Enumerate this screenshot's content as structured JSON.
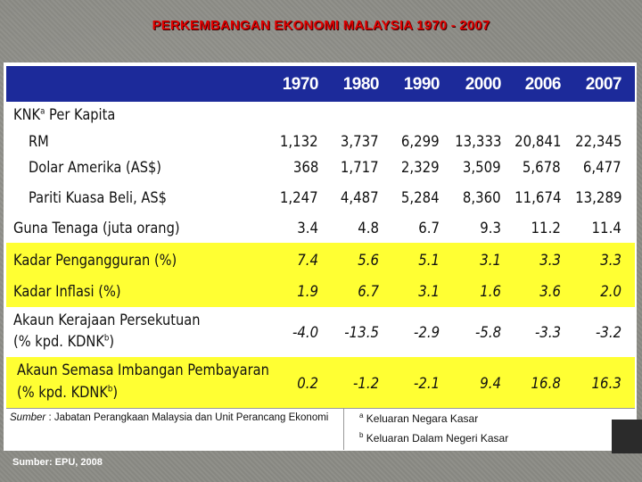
{
  "title": "PERKEMBANGAN EKONOMI MALAYSIA 1970 - 2007",
  "years": [
    "1970",
    "1980",
    "1990",
    "2000",
    "2006",
    "2007"
  ],
  "rows": [
    {
      "label": "KNK",
      "label_sup": "a",
      "label_rest": " Per Kapita",
      "values": []
    },
    {
      "label": "RM",
      "values": [
        "1,132",
        "3,737",
        "6,299",
        "13,333",
        "20,841",
        "22,345"
      ]
    },
    {
      "label": "Dolar Amerika (AS$)",
      "values": [
        "368",
        "1,717",
        "2,329",
        "3,509",
        "5,678",
        "6,477"
      ]
    },
    {
      "label": "Pariti Kuasa Beli, AS$",
      "values": [
        "1,247",
        "4,487",
        "5,284",
        "8,360",
        "11,674",
        "13,289"
      ]
    },
    {
      "label": "Guna Tenaga (juta orang)",
      "values": [
        "3.4",
        "4.8",
        "6.7",
        "9.3",
        "11.2",
        "11.4"
      ]
    },
    {
      "label": "Kadar Pengangguran (%)",
      "values": [
        "7.4",
        "5.6",
        "5.1",
        "3.1",
        "3.3",
        "3.3"
      ]
    },
    {
      "label": "Kadar Inflasi (%)",
      "values": [
        "1.9",
        "6.7",
        "3.1",
        "1.6",
        "3.6",
        "2.0"
      ]
    },
    {
      "label": "Akaun Kerajaan Persekutuan",
      "label2": "(% kpd. KDNK",
      "label2_sup": "b",
      "label2_end": ")",
      "values": [
        "-4.0",
        "-13.5",
        "-2.9",
        "-5.8",
        "-3.3",
        "-3.2"
      ]
    },
    {
      "label": "Akaun Semasa Imbangan Pembayaran",
      "label2": "(% kpd. KDNK",
      "label2_sup": "b",
      "label2_end": ")",
      "values": [
        "0.2",
        "-1.2",
        "-2.1",
        "9.4",
        "16.8",
        "16.3"
      ]
    }
  ],
  "footnote": {
    "source_label": "Sumber",
    "source_text": " : Jabatan Perangkaan Malaysia dan Unit Perancang Ekonomi",
    "note_a_mark": "a",
    "note_a": " Keluaran Negara Kasar",
    "note_b_mark": "b",
    "note_b": " Keluaran Dalam Negeri Kasar"
  },
  "bottom_source": "Sumber: EPU, 2008",
  "colors": {
    "header_bg": "#1c2a9a",
    "highlight": "#ffff33",
    "title": "#e00000"
  }
}
